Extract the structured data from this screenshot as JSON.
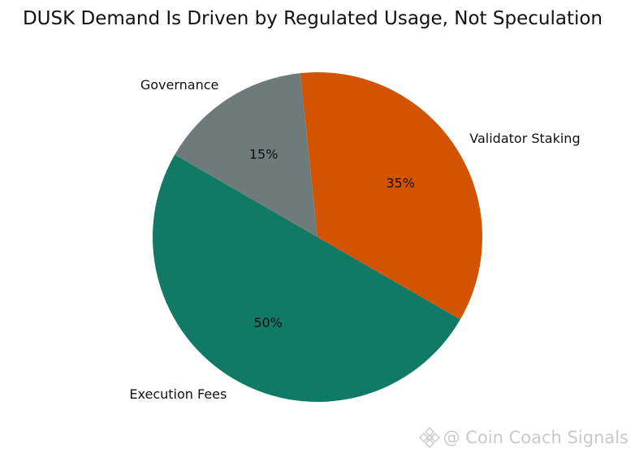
{
  "chart_data": {
    "type": "pie",
    "title": "DUSK Demand Is Driven by Regulated Usage, Not Speculation",
    "slices": [
      {
        "label": "Execution Fees",
        "value": 50,
        "pct_label": "50%",
        "color": "#117a65"
      },
      {
        "label": "Validator Staking",
        "value": 35,
        "pct_label": "35%",
        "color": "#d35400"
      },
      {
        "label": "Governance",
        "value": 15,
        "pct_label": "15%",
        "color": "#6e7b7a"
      }
    ],
    "start_angle_deg": 150,
    "direction": "counterclockwise"
  },
  "watermark": {
    "text": "@ Coin Coach Signals",
    "icon": "binance-logo-icon"
  }
}
